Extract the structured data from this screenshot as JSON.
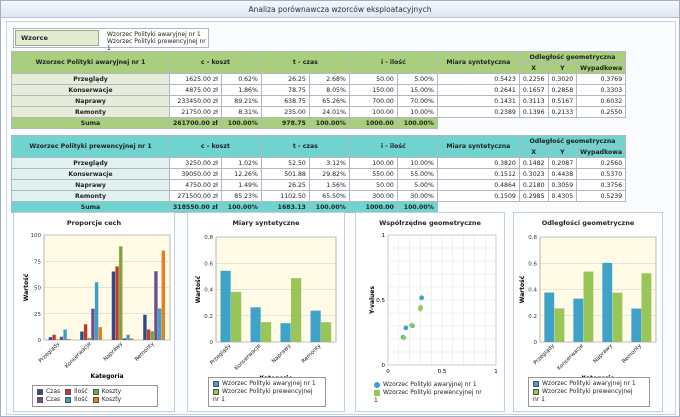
{
  "window": {
    "title": "Analiza porównawcza wzorców eksploatacyjnych"
  },
  "pattern": {
    "label": "Wzorce",
    "names": [
      "Wzorzec Polityki awaryjnej nr 1",
      "Wzorzec Polityki prewencyjnej nr 1"
    ]
  },
  "colors": {
    "green": "#a9cf7e",
    "cyan": "#6fd3cf",
    "bar_blue": "#3fa3c9",
    "bar_green": "#9ac659"
  },
  "table1": {
    "title": "Wzorzec Polityki awaryjnej nr 1",
    "headers": {
      "c": "c - koszt",
      "t": "t - czas",
      "i": "i - ilość",
      "miara": "Miara syntetyczna",
      "odl": "Odległość geometryczna",
      "x": "X",
      "y": "Y",
      "wyp": "Wypadkowa"
    },
    "rows": [
      {
        "name": "Przeglądy",
        "c": "1625.00 zł",
        "cp": "0.62%",
        "t": "26.25",
        "tp": "2.68%",
        "i": "50.00",
        "ip": "5.00%",
        "m": "0.5423",
        "x": "0.2256",
        "y": "0.3020",
        "w": "0.3769"
      },
      {
        "name": "Konserwacje",
        "c": "4875.00 zł",
        "cp": "1.86%",
        "t": "78.75",
        "tp": "8.05%",
        "i": "150.00",
        "ip": "15.00%",
        "m": "0.2641",
        "x": "0.1657",
        "y": "0.2858",
        "w": "0.3303"
      },
      {
        "name": "Naprawy",
        "c": "233450.00 zł",
        "cp": "89.21%",
        "t": "638.75",
        "tp": "65.26%",
        "i": "700.00",
        "ip": "70.00%",
        "m": "0.1431",
        "x": "0.3113",
        "y": "0.5167",
        "w": "0.6032"
      },
      {
        "name": "Remonty",
        "c": "21750.00 zł",
        "cp": "8.31%",
        "t": "235.00",
        "tp": "24.01%",
        "i": "100.00",
        "ip": "10.00%",
        "m": "0.2389",
        "x": "0.1396",
        "y": "0.2133",
        "w": "0.2550"
      }
    ],
    "sum": {
      "name": "Suma",
      "c": "261700.00 zł",
      "cp": "100.00%",
      "t": "978.75",
      "tp": "100.00%",
      "i": "1000.00",
      "ip": "100.00%"
    }
  },
  "table2": {
    "title": "Wzorzec Polityki prewencyjnej nr 1",
    "headers": {
      "c": "c - koszt",
      "t": "t - czas",
      "i": "i - ilość",
      "miara": "Miara syntetyczna",
      "odl": "Odległość geometryczna",
      "x": "X",
      "y": "Y",
      "wyp": "Wypadkowa"
    },
    "rows": [
      {
        "name": "Przeglądy",
        "c": "3250.00 zł",
        "cp": "1.02%",
        "t": "52.50",
        "tp": "3.12%",
        "i": "100.00",
        "ip": "10.00%",
        "m": "0.3820",
        "x": "0.1482",
        "y": "0.2087",
        "w": "0.2560"
      },
      {
        "name": "Konserwacje",
        "c": "39050.00 zł",
        "cp": "12.26%",
        "t": "501.88",
        "tp": "29.82%",
        "i": "550.00",
        "ip": "55.00%",
        "m": "0.1512",
        "x": "0.3023",
        "y": "0.4438",
        "w": "0.5370"
      },
      {
        "name": "Naprawy",
        "c": "4750.00 zł",
        "cp": "1.49%",
        "t": "26.25",
        "tp": "1.56%",
        "i": "50.00",
        "ip": "5.00%",
        "m": "0.4864",
        "x": "0.2180",
        "y": "0.3059",
        "w": "0.3756"
      },
      {
        "name": "Remonty",
        "c": "271500.00 zł",
        "cp": "85.23%",
        "t": "1102.50",
        "tp": "65.50%",
        "i": "300.00",
        "ip": "30.00%",
        "m": "0.1509",
        "x": "0.2985",
        "y": "0.4305",
        "w": "0.5239"
      }
    ],
    "sum": {
      "name": "Suma",
      "c": "318550.00 zł",
      "cp": "100.00%",
      "t": "1683.13",
      "tp": "100.00%",
      "i": "1000.00",
      "ip": "100.00%"
    }
  },
  "chart_data": [
    {
      "type": "bar",
      "title": "Proporcje cech",
      "xlabel": "Kategoria",
      "ylabel": "Wartość",
      "ylim": [
        0,
        100
      ],
      "yticks": [
        "0",
        "25",
        "50",
        "75",
        "100"
      ],
      "categories": [
        "Przeglądy",
        "Konserwacje",
        "Naprawy",
        "Remonty"
      ],
      "series": [
        {
          "name": "Czas",
          "color": "#2e4a8c",
          "values": [
            2.68,
            8.05,
            65.26,
            24.01
          ]
        },
        {
          "name": "Ilość",
          "color": "#c0392b",
          "values": [
            5,
            15,
            70,
            10
          ]
        },
        {
          "name": "Koszty",
          "color": "#7fa33b",
          "values": [
            0.62,
            1.86,
            89.21,
            8.31
          ]
        },
        {
          "name": "Czas",
          "color": "#6b4f8f",
          "values": [
            3.12,
            29.82,
            1.56,
            65.5
          ]
        },
        {
          "name": "Ilość",
          "color": "#3aa0c8",
          "values": [
            10,
            55,
            5,
            30
          ]
        },
        {
          "name": "Koszty",
          "color": "#e67e22",
          "values": [
            1.02,
            12.26,
            1.49,
            85.23
          ]
        }
      ]
    },
    {
      "type": "bar",
      "title": "Miary syntetyczne",
      "xlabel": "Kategorie",
      "ylabel": "Wartość",
      "ylim": [
        0,
        0.8
      ],
      "yticks": [
        "0",
        "0.2",
        "0.4",
        "0.6",
        "0.8"
      ],
      "categories": [
        "Przeglądy",
        "Konserwacje",
        "Naprawy",
        "Remonty"
      ],
      "series": [
        {
          "name": "Wzorzec Polityki awaryjnej nr 1",
          "color": "#3fa3c9",
          "values": [
            0.5423,
            0.2641,
            0.1431,
            0.2389
          ]
        },
        {
          "name": "Wzorzec Polityki prewencyjnej nr 1",
          "color": "#9ac659",
          "values": [
            0.382,
            0.1512,
            0.4864,
            0.1509
          ]
        }
      ]
    },
    {
      "type": "scatter",
      "title": "Współrzędne geometryczne",
      "xlabel": "",
      "ylabel": "Y-values",
      "xlim": [
        0,
        1
      ],
      "ylim": [
        0,
        1
      ],
      "xticks": [
        "0",
        "0.5",
        "1"
      ],
      "yticks": [
        "0",
        "0.5",
        "1"
      ],
      "series": [
        {
          "name": "Wzorzec Polityki awaryjnej nr 1",
          "color": "#3fa3c9",
          "points": [
            [
              0.2256,
              0.302
            ],
            [
              0.1657,
              0.2858
            ],
            [
              0.3113,
              0.5167
            ],
            [
              0.1396,
              0.2133
            ]
          ]
        },
        {
          "name": "Wzorzec Polityki prewencyjnej nr 1",
          "color": "#9ac659",
          "points": [
            [
              0.1482,
              0.2087
            ],
            [
              0.3023,
              0.4438
            ],
            [
              0.218,
              0.3059
            ],
            [
              0.2985,
              0.4305
            ]
          ]
        }
      ]
    },
    {
      "type": "bar",
      "title": "Odległości geometryczne",
      "xlabel": "Kategorie",
      "ylabel": "Wartość",
      "ylim": [
        0,
        0.8
      ],
      "yticks": [
        "0",
        "0.2",
        "0.4",
        "0.6",
        "0.8"
      ],
      "categories": [
        "Przeglądy",
        "Konserwacje",
        "Naprawy",
        "Remonty"
      ],
      "series": [
        {
          "name": "Wzorzec Polityki awaryjnej nr 1",
          "color": "#3fa3c9",
          "values": [
            0.3769,
            0.3303,
            0.6032,
            0.255
          ]
        },
        {
          "name": "Wzorzec Polityki prewencyjnej nr 1",
          "color": "#9ac659",
          "values": [
            0.256,
            0.537,
            0.3756,
            0.5239
          ]
        }
      ]
    }
  ]
}
